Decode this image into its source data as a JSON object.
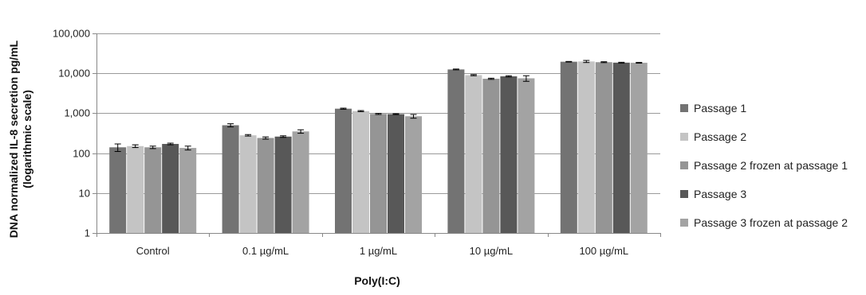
{
  "chart_data": {
    "type": "bar",
    "ylabel_line1": "DNA normalized IL-8 secretion pg/mL",
    "ylabel_line2": "(logarithmic scale)",
    "xlabel": "Poly(I:C)",
    "y_scale": "log",
    "ylim": [
      1,
      100000
    ],
    "y_ticks": [
      "1",
      "10",
      "100",
      "1,000",
      "10,000",
      "100,000"
    ],
    "y_tick_values": [
      1,
      10,
      100,
      1000,
      10000,
      100000
    ],
    "grid": true,
    "legend_position": "right",
    "categories": [
      "Control",
      "0.1 µg/mL",
      "1 µg/mL",
      "10 µg/mL",
      "100 µg/mL"
    ],
    "series": [
      {
        "name": "Passage 1",
        "color": "#737373",
        "values": [
          140,
          500,
          1300,
          12500,
          19500
        ],
        "errors": [
          30,
          45,
          40,
          300,
          300
        ]
      },
      {
        "name": "Passage 2",
        "color": "#c4c4c4",
        "values": [
          150,
          280,
          1130,
          9000,
          19800
        ],
        "errors": [
          12,
          12,
          35,
          300,
          1200
        ]
      },
      {
        "name": "Passage 2 frozen at passage 1",
        "color": "#959595",
        "values": [
          140,
          240,
          960,
          7300,
          19000
        ],
        "errors": [
          10,
          15,
          30,
          250,
          500
        ]
      },
      {
        "name": "Passage 3",
        "color": "#585858",
        "values": [
          170,
          260,
          950,
          8400,
          18500
        ],
        "errors": [
          8,
          12,
          25,
          300,
          400
        ]
      },
      {
        "name": "Passage 3 frozen at passage 2",
        "color": "#a3a3a3",
        "values": [
          135,
          350,
          840,
          7500,
          18400
        ],
        "errors": [
          15,
          35,
          90,
          1200,
          400
        ]
      }
    ]
  }
}
